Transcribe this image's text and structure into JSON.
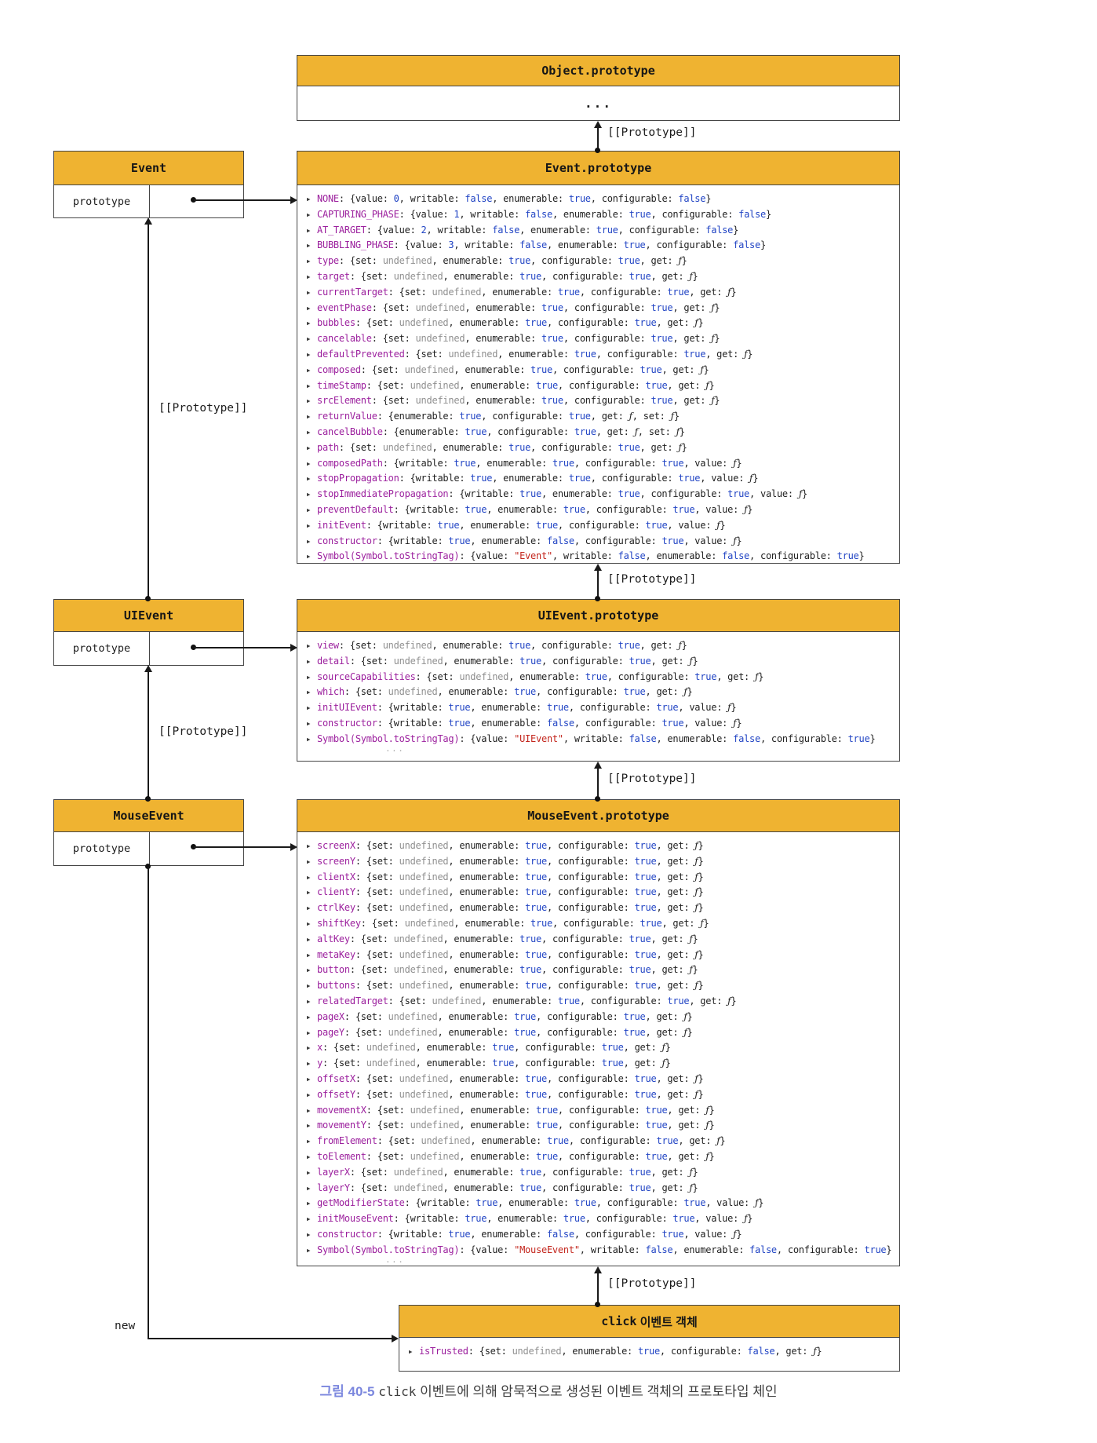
{
  "labels": {
    "prototype_link": "[[Prototype]]",
    "new_keyword": "new",
    "tail_ellipsis": "···"
  },
  "caption": {
    "tag": "그림 40-5",
    "code": "click",
    "rest": " 이벤트에 의해 암묵적으로 생성된 이벤트 객체의 프로토타입 체인"
  },
  "colors": {
    "header_yellow": "#efb331",
    "border_gray": "#454545",
    "property_name_purple": "#9c219e",
    "keyword_blue": "#2144c4",
    "string_red": "#c3251c",
    "undefined_gray": "#8f8f8f",
    "caption_tag_blue": "#7b87de"
  },
  "boxes": {
    "object_proto": {
      "title": "Object.prototype",
      "body": "..."
    },
    "event_ctor": {
      "title": "Event",
      "cell": "prototype"
    },
    "event_proto": {
      "title": "Event.prototype",
      "props": [
        {
          "name": "NONE",
          "desc": "{value: 0, writable: false, enumerable: true, configurable: false}"
        },
        {
          "name": "CAPTURING_PHASE",
          "desc": "{value: 1, writable: false, enumerable: true, configurable: false}"
        },
        {
          "name": "AT_TARGET",
          "desc": "{value: 2, writable: false, enumerable: true, configurable: false}"
        },
        {
          "name": "BUBBLING_PHASE",
          "desc": "{value: 3, writable: false, enumerable: true, configurable: false}"
        },
        {
          "name": "type",
          "desc": "{set: undefined, enumerable: true, configurable: true, get: ƒ}"
        },
        {
          "name": "target",
          "desc": "{set: undefined, enumerable: true, configurable: true, get: ƒ}"
        },
        {
          "name": "currentTarget",
          "desc": "{set: undefined, enumerable: true, configurable: true, get: ƒ}"
        },
        {
          "name": "eventPhase",
          "desc": "{set: undefined, enumerable: true, configurable: true, get: ƒ}"
        },
        {
          "name": "bubbles",
          "desc": "{set: undefined, enumerable: true, configurable: true, get: ƒ}"
        },
        {
          "name": "cancelable",
          "desc": "{set: undefined, enumerable: true, configurable: true, get: ƒ}"
        },
        {
          "name": "defaultPrevented",
          "desc": "{set: undefined, enumerable: true, configurable: true, get: ƒ}"
        },
        {
          "name": "composed",
          "desc": "{set: undefined, enumerable: true, configurable: true, get: ƒ}"
        },
        {
          "name": "timeStamp",
          "desc": "{set: undefined, enumerable: true, configurable: true, get: ƒ}"
        },
        {
          "name": "srcElement",
          "desc": "{set: undefined, enumerable: true, configurable: true, get: ƒ}"
        },
        {
          "name": "returnValue",
          "desc": "{enumerable: true, configurable: true, get: ƒ, set: ƒ}"
        },
        {
          "name": "cancelBubble",
          "desc": "{enumerable: true, configurable: true, get: ƒ, set: ƒ}"
        },
        {
          "name": "path",
          "desc": "{set: undefined, enumerable: true, configurable: true, get: ƒ}"
        },
        {
          "name": "composedPath",
          "desc": "{writable: true, enumerable: true, configurable: true, value: ƒ}"
        },
        {
          "name": "stopPropagation",
          "desc": "{writable: true, enumerable: true, configurable: true, value: ƒ}"
        },
        {
          "name": "stopImmediatePropagation",
          "desc": "{writable: true, enumerable: true, configurable: true, value: ƒ}"
        },
        {
          "name": "preventDefault",
          "desc": "{writable: true, enumerable: true, configurable: true, value: ƒ}"
        },
        {
          "name": "initEvent",
          "desc": "{writable: true, enumerable: true, configurable: true, value: ƒ}"
        },
        {
          "name": "constructor",
          "desc": "{writable: true, enumerable: false, configurable: true, value: ƒ}"
        },
        {
          "name": "Symbol(Symbol.toStringTag)",
          "desc": "{value: \"Event\", writable: false, enumerable: false, configurable: true}"
        }
      ]
    },
    "uievent_ctor": {
      "title": "UIEvent",
      "cell": "prototype"
    },
    "uievent_proto": {
      "title": "UIEvent.prototype",
      "props": [
        {
          "name": "view",
          "desc": "{set: undefined, enumerable: true, configurable: true, get: ƒ}"
        },
        {
          "name": "detail",
          "desc": "{set: undefined, enumerable: true, configurable: true, get: ƒ}"
        },
        {
          "name": "sourceCapabilities",
          "desc": "{set: undefined, enumerable: true, configurable: true, get: ƒ}"
        },
        {
          "name": "which",
          "desc": "{set: undefined, enumerable: true, configurable: true, get: ƒ}"
        },
        {
          "name": "initUIEvent",
          "desc": "{writable: true, enumerable: true, configurable: true, value: ƒ}"
        },
        {
          "name": "constructor",
          "desc": "{writable: true, enumerable: false, configurable: true, value: ƒ}"
        },
        {
          "name": "Symbol(Symbol.toStringTag)",
          "desc": "{value: \"UIEvent\", writable: false, enumerable: false, configurable: true}"
        }
      ]
    },
    "mouseevent_ctor": {
      "title": "MouseEvent",
      "cell": "prototype"
    },
    "mouseevent_proto": {
      "title": "MouseEvent.prototype",
      "props": [
        {
          "name": "screenX",
          "desc": "{set: undefined, enumerable: true, configurable: true, get: ƒ}"
        },
        {
          "name": "screenY",
          "desc": "{set: undefined, enumerable: true, configurable: true, get: ƒ}"
        },
        {
          "name": "clientX",
          "desc": "{set: undefined, enumerable: true, configurable: true, get: ƒ}"
        },
        {
          "name": "clientY",
          "desc": "{set: undefined, enumerable: true, configurable: true, get: ƒ}"
        },
        {
          "name": "ctrlKey",
          "desc": "{set: undefined, enumerable: true, configurable: true, get: ƒ}"
        },
        {
          "name": "shiftKey",
          "desc": "{set: undefined, enumerable: true, configurable: true, get: ƒ}"
        },
        {
          "name": "altKey",
          "desc": "{set: undefined, enumerable: true, configurable: true, get: ƒ}"
        },
        {
          "name": "metaKey",
          "desc": "{set: undefined, enumerable: true, configurable: true, get: ƒ}"
        },
        {
          "name": "button",
          "desc": "{set: undefined, enumerable: true, configurable: true, get: ƒ}"
        },
        {
          "name": "buttons",
          "desc": "{set: undefined, enumerable: true, configurable: true, get: ƒ}"
        },
        {
          "name": "relatedTarget",
          "desc": "{set: undefined, enumerable: true, configurable: true, get: ƒ}"
        },
        {
          "name": "pageX",
          "desc": "{set: undefined, enumerable: true, configurable: true, get: ƒ}"
        },
        {
          "name": "pageY",
          "desc": "{set: undefined, enumerable: true, configurable: true, get: ƒ}"
        },
        {
          "name": "x",
          "desc": "{set: undefined, enumerable: true, configurable: true, get: ƒ}"
        },
        {
          "name": "y",
          "desc": "{set: undefined, enumerable: true, configurable: true, get: ƒ}"
        },
        {
          "name": "offsetX",
          "desc": "{set: undefined, enumerable: true, configurable: true, get: ƒ}"
        },
        {
          "name": "offsetY",
          "desc": "{set: undefined, enumerable: true, configurable: true, get: ƒ}"
        },
        {
          "name": "movementX",
          "desc": "{set: undefined, enumerable: true, configurable: true, get: ƒ}"
        },
        {
          "name": "movementY",
          "desc": "{set: undefined, enumerable: true, configurable: true, get: ƒ}"
        },
        {
          "name": "fromElement",
          "desc": "{set: undefined, enumerable: true, configurable: true, get: ƒ}"
        },
        {
          "name": "toElement",
          "desc": "{set: undefined, enumerable: true, configurable: true, get: ƒ}"
        },
        {
          "name": "layerX",
          "desc": "{set: undefined, enumerable: true, configurable: true, get: ƒ}"
        },
        {
          "name": "layerY",
          "desc": "{set: undefined, enumerable: true, configurable: true, get: ƒ}"
        },
        {
          "name": "getModifierState",
          "desc": "{writable: true, enumerable: true, configurable: true, value: ƒ}"
        },
        {
          "name": "initMouseEvent",
          "desc": "{writable: true, enumerable: true, configurable: true, value: ƒ}"
        },
        {
          "name": "constructor",
          "desc": "{writable: true, enumerable: false, configurable: true, value: ƒ}"
        },
        {
          "name": "Symbol(Symbol.toStringTag)",
          "desc": "{value: \"MouseEvent\", writable: false, enumerable: false, configurable: true}"
        }
      ]
    },
    "click_event": {
      "title_code": "click",
      "title_rest": " 이벤트 객체",
      "props": [
        {
          "name": "isTrusted",
          "desc": "{set: undefined, enumerable: true, configurable: false, get: ƒ}"
        }
      ]
    }
  }
}
